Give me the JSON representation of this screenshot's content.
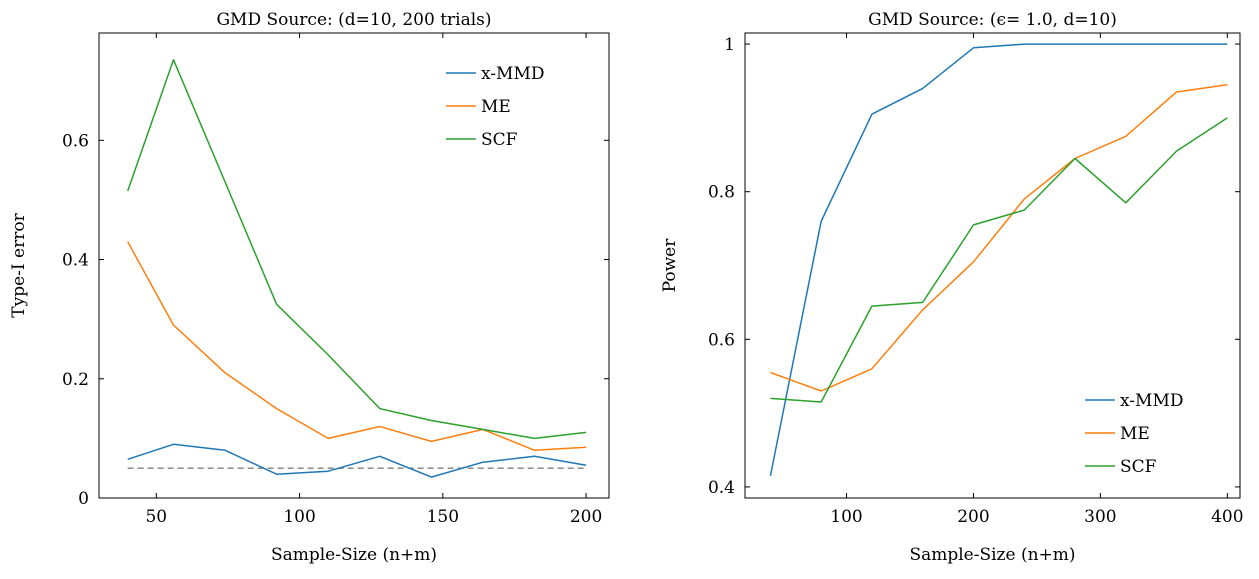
{
  "chart_data": [
    {
      "type": "line",
      "title": "GMD Source: (d=10, 200 trials)",
      "xlabel": "Sample-Size (n+m)",
      "ylabel": "Type-I error",
      "xlim": [
        30,
        208
      ],
      "ylim": [
        0,
        0.78
      ],
      "xticks": [
        50,
        100,
        150,
        200
      ],
      "yticks": [
        0,
        0.2,
        0.4,
        0.6
      ],
      "xtick_labels": [
        "50",
        "100",
        "150",
        "200"
      ],
      "ytick_labels": [
        "0",
        "0.2",
        "0.4",
        "0.6"
      ],
      "legend_position": "top-right",
      "grid": false,
      "x": [
        40,
        56,
        74,
        92,
        110,
        128,
        146,
        164,
        182,
        200
      ],
      "series": [
        {
          "name": "x-MMD",
          "color": "#1f77b4",
          "values": [
            0.065,
            0.09,
            0.08,
            0.04,
            0.045,
            0.07,
            0.035,
            0.06,
            0.07,
            0.055
          ]
        },
        {
          "name": "ME",
          "color": "#ff7f0e",
          "values": [
            0.43,
            0.29,
            0.21,
            0.15,
            0.1,
            0.12,
            0.095,
            0.115,
            0.08,
            0.085
          ]
        },
        {
          "name": "SCF",
          "color": "#2ca02c",
          "values": [
            0.515,
            0.735,
            0.53,
            0.325,
            0.24,
            0.15,
            0.13,
            0.115,
            0.1,
            0.11
          ]
        }
      ],
      "reference_line": {
        "value": 0.05,
        "style": "dashed",
        "color": "#808080"
      }
    },
    {
      "type": "line",
      "title": "GMD Source: (ϵ= 1.0, d=10)",
      "xlabel": "Sample-Size (n+m)",
      "ylabel": "Power",
      "xlim": [
        20,
        410
      ],
      "ylim": [
        0.385,
        1.015
      ],
      "xticks": [
        100,
        200,
        300,
        400
      ],
      "yticks": [
        0.4,
        0.6,
        0.8,
        1.0
      ],
      "xtick_labels": [
        "100",
        "200",
        "300",
        "400"
      ],
      "ytick_labels": [
        "0.4",
        "0.6",
        "0.8",
        "1"
      ],
      "legend_position": "bottom-right",
      "grid": false,
      "x": [
        40,
        80,
        120,
        160,
        200,
        240,
        280,
        320,
        360,
        400
      ],
      "series": [
        {
          "name": "x-MMD",
          "color": "#1f77b4",
          "values": [
            0.415,
            0.76,
            0.905,
            0.94,
            0.995,
            1.0,
            1.0,
            1.0,
            1.0,
            1.0
          ]
        },
        {
          "name": "ME",
          "color": "#ff7f0e",
          "values": [
            0.555,
            0.53,
            0.56,
            0.64,
            0.705,
            0.79,
            0.845,
            0.875,
            0.935,
            0.945
          ]
        },
        {
          "name": "SCF",
          "color": "#2ca02c",
          "values": [
            0.52,
            0.515,
            0.645,
            0.65,
            0.755,
            0.775,
            0.845,
            0.785,
            0.855,
            0.9
          ]
        }
      ]
    }
  ]
}
